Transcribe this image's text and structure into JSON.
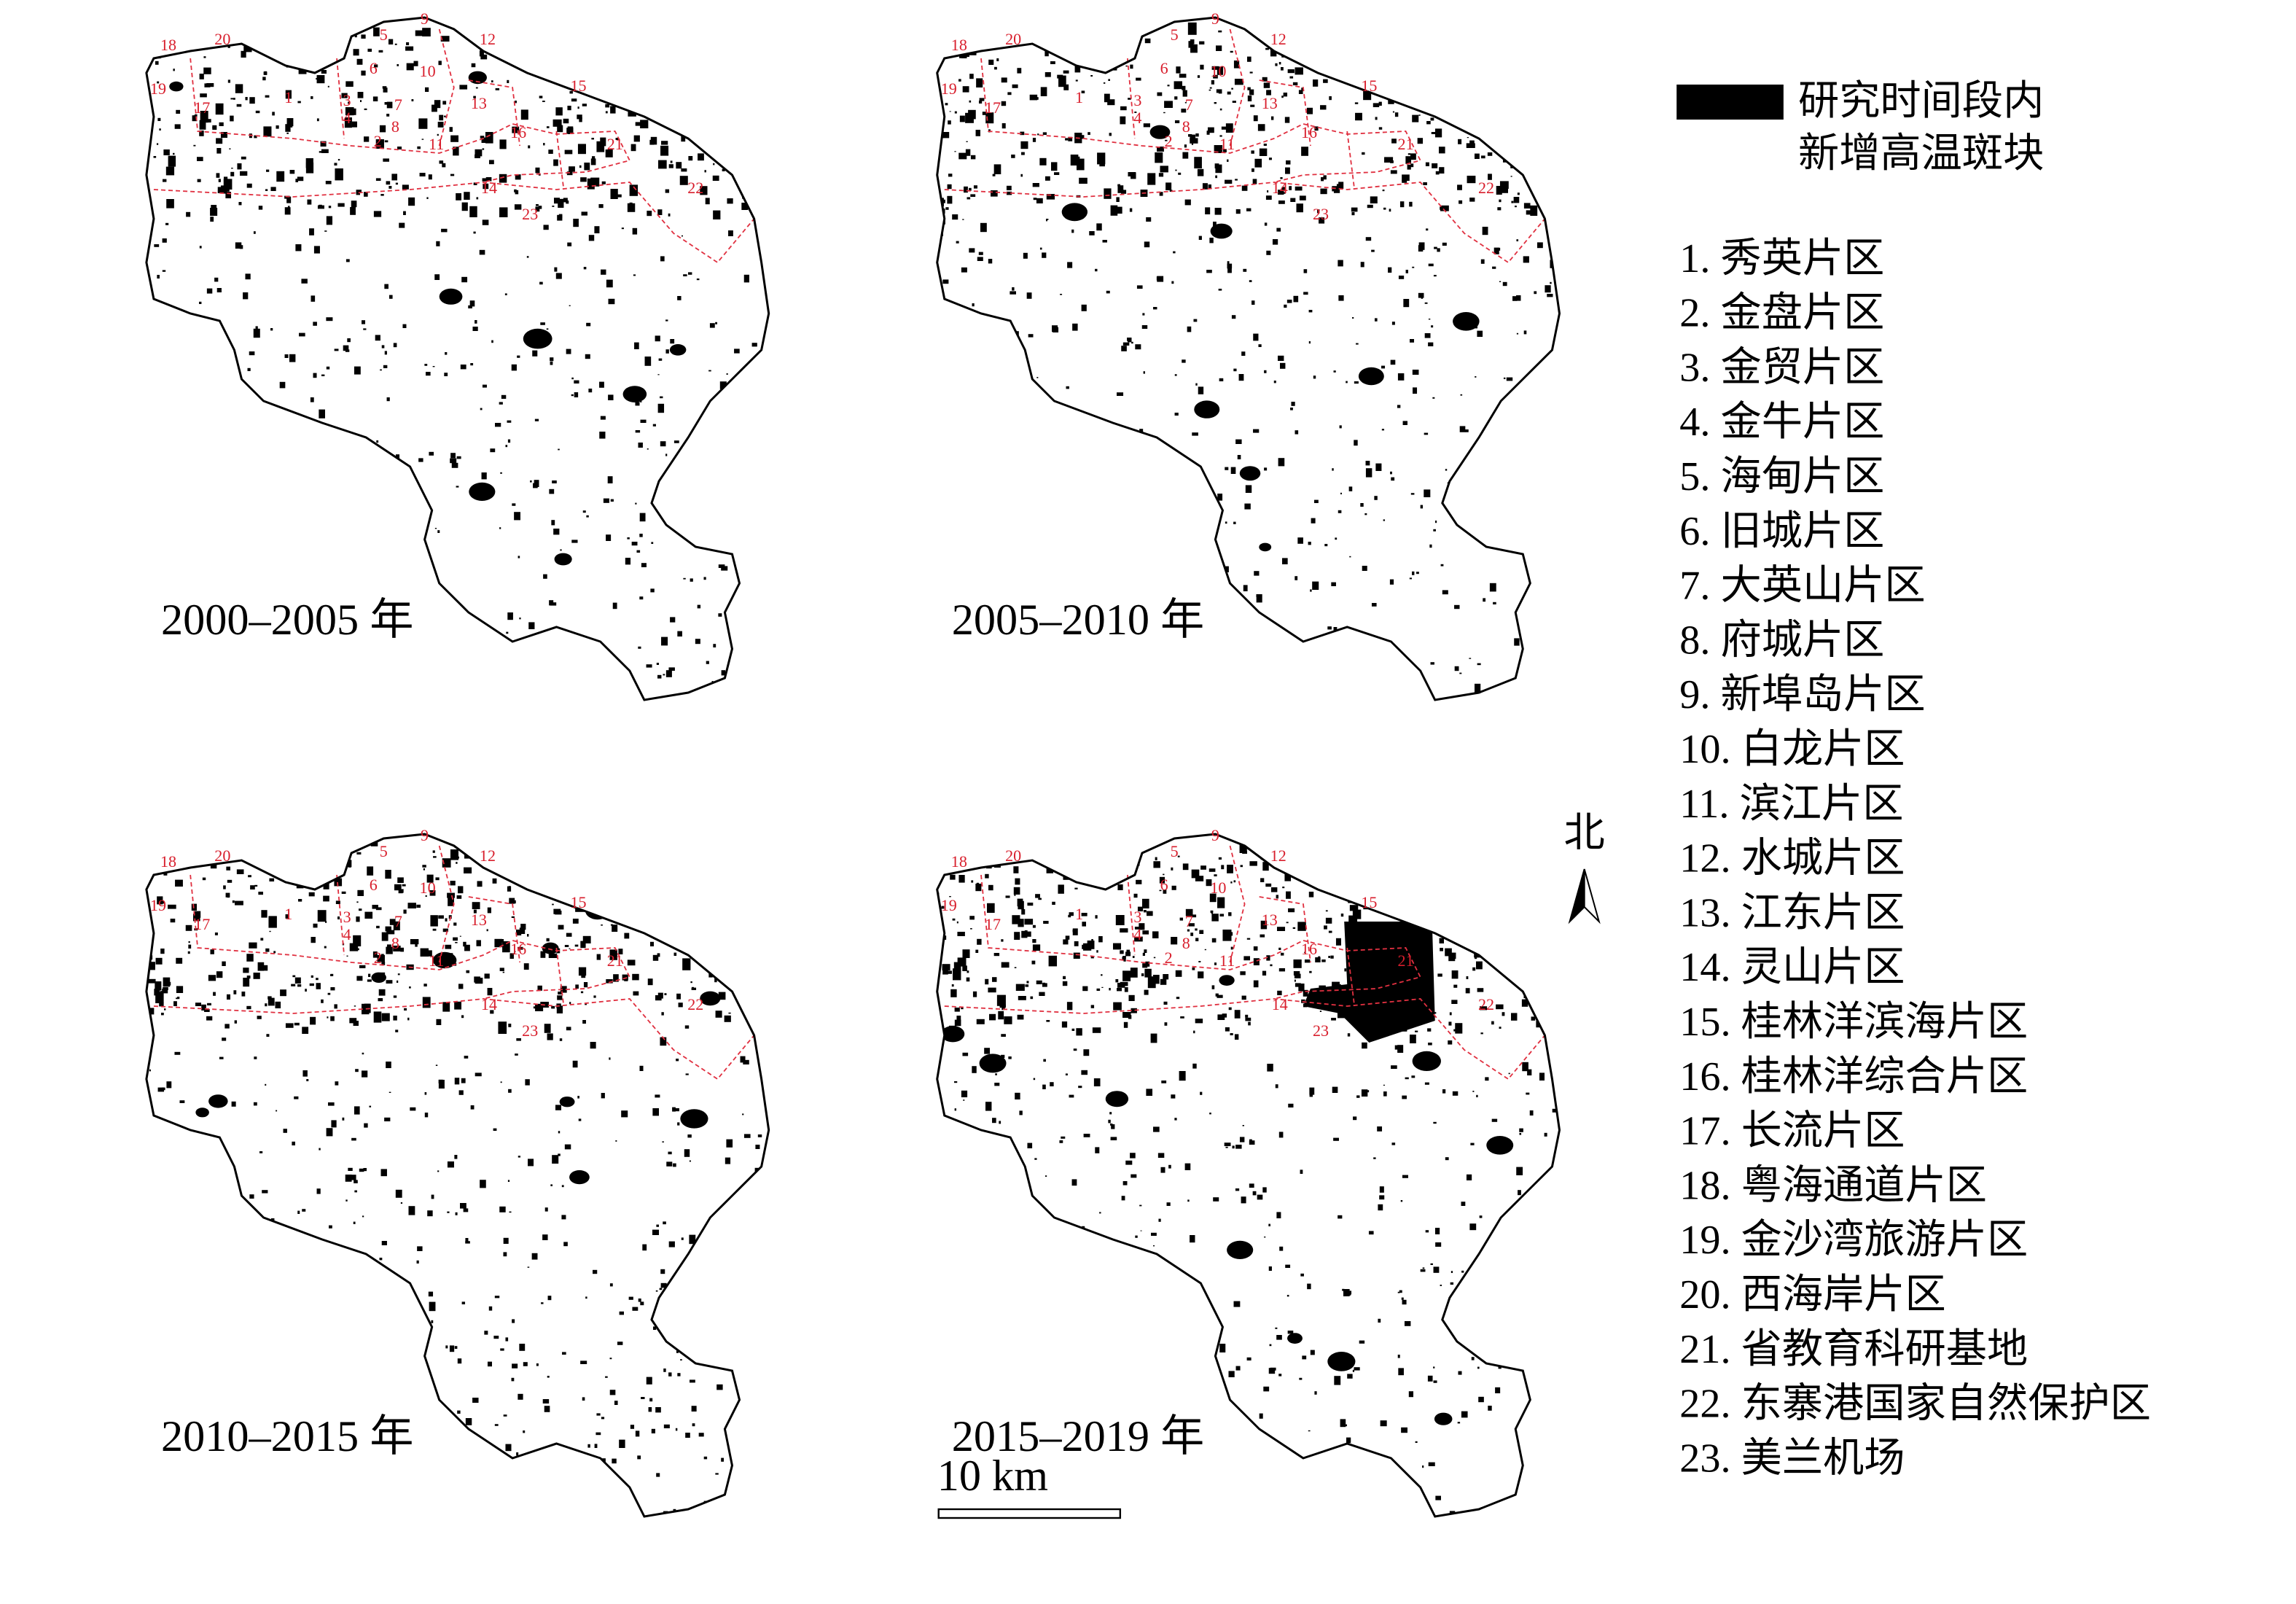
{
  "panels": [
    {
      "period": "2000–2005 年"
    },
    {
      "period": "2005–2010 年"
    },
    {
      "period": "2010–2015 年"
    },
    {
      "period": "2015–2019 年"
    }
  ],
  "zone_numbers": [
    "1",
    "2",
    "3",
    "4",
    "5",
    "6",
    "7",
    "8",
    "9",
    "10",
    "11",
    "12",
    "13",
    "14",
    "15",
    "16",
    "17",
    "18",
    "19",
    "20",
    "21",
    "22",
    "23"
  ],
  "legend": {
    "patch_label": [
      "研究时间段内",
      "新增高温斑块"
    ],
    "zones": [
      "1. 秀英片区",
      "2. 金盘片区",
      "3. 金贸片区",
      "4. 金牛片区",
      "5. 海甸片区",
      "6. 旧城片区",
      "7. 大英山片区",
      "8. 府城片区",
      "9. 新埠岛片区",
      "10. 白龙片区",
      "11. 滨江片区",
      "12. 水城片区",
      "13. 江东片区",
      "14. 灵山片区",
      "15. 桂林洋滨海片区",
      "16. 桂林洋综合片区",
      "17. 长流片区",
      "18. 粤海通道片区",
      "19. 金沙湾旅游片区",
      "20. 西海岸片区",
      "21. 省教育科研基地",
      "22. 东寨港国家自然保护区",
      "23. 美兰机场"
    ]
  },
  "north": "北",
  "scale_bar": "10 km"
}
